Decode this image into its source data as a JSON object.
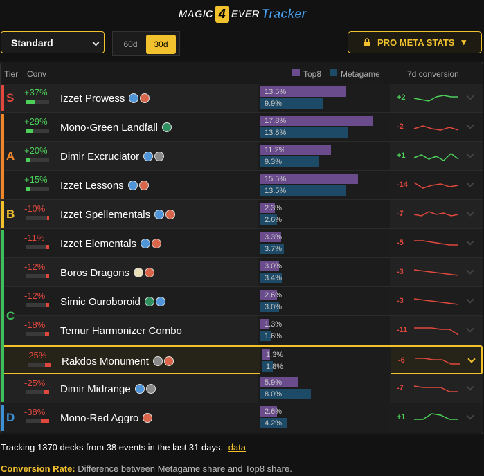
{
  "header": {
    "logo": [
      "MAGIC",
      "4",
      "EVER",
      "Tracker"
    ]
  },
  "controls": {
    "format": "Standard",
    "periods": [
      "60d",
      "30d"
    ],
    "active_period": 1,
    "pro_button": "PRO META STATS",
    "pro_arrow": "▾"
  },
  "table": {
    "columns": {
      "tier": "Tier",
      "conv": "Conv",
      "top8": "Top8",
      "metagame": "Metagame",
      "trend": "7d conversion"
    },
    "selected_row": 9,
    "tiers": [
      {
        "label": "S",
        "from": 0,
        "to": 0,
        "color": "#e0483e"
      },
      {
        "label": "A",
        "from": 1,
        "to": 3,
        "color": "#f0862a"
      },
      {
        "label": "B",
        "from": 4,
        "to": 4,
        "color": "#f2c12e"
      },
      {
        "label": "C",
        "from": 5,
        "to": 10,
        "color": "#3fbf5a"
      },
      {
        "label": "D",
        "from": 11,
        "to": 11,
        "color": "#3d8fd6"
      }
    ],
    "rows": [
      {
        "name": "Izzet Prowess",
        "conv": 37,
        "conv_label": "+37%",
        "top8": 13.5,
        "top8_label": "13.5%",
        "meta": 9.9,
        "meta_label": "9.9%",
        "delta": "+2",
        "trend": [
          5,
          4,
          3,
          6,
          7,
          6,
          6
        ]
      },
      {
        "name": "Mono-Green Landfall",
        "conv": 29,
        "conv_label": "+29%",
        "top8": 17.8,
        "top8_label": "17.8%",
        "meta": 13.8,
        "meta_label": "13.8%",
        "delta": "-2",
        "trend": [
          4,
          6,
          4,
          3,
          5,
          3
        ]
      },
      {
        "name": "Dimir Excruciator",
        "conv": 20,
        "conv_label": "+20%",
        "top8": 11.2,
        "top8_label": "11.2%",
        "meta": 9.3,
        "meta_label": "9.3%",
        "delta": "+1",
        "trend": [
          4,
          6,
          3,
          5,
          2,
          7,
          3
        ]
      },
      {
        "name": "Izzet Lessons",
        "conv": 15,
        "conv_label": "+15%",
        "top8": 15.5,
        "top8_label": "15.5%",
        "meta": 13.5,
        "meta_label": "13.5%",
        "delta": "-14",
        "trend": [
          7,
          3,
          5,
          6,
          4,
          5
        ]
      },
      {
        "name": "Izzet Spellementals",
        "conv": -10,
        "conv_label": "-10%",
        "top8": 2.3,
        "top8_label": "2.3%",
        "meta": 2.6,
        "meta_label": "2.6%",
        "delta": "-7",
        "trend": [
          5,
          4,
          7,
          5,
          6,
          4,
          5
        ]
      },
      {
        "name": "Izzet Elementals",
        "conv": -11,
        "conv_label": "-11%",
        "top8": 3.3,
        "top8_label": "3.3%",
        "meta": 3.7,
        "meta_label": "3.7%",
        "delta": "-5",
        "trend": [
          7,
          7,
          6,
          5,
          4,
          4
        ]
      },
      {
        "name": "Boros Dragons",
        "conv": -12,
        "conv_label": "-12%",
        "top8": 3.0,
        "top8_label": "3.0%",
        "meta": 3.4,
        "meta_label": "3.4%",
        "delta": "-3",
        "trend": [
          7,
          6,
          5,
          4,
          3
        ]
      },
      {
        "name": "Simic Ouroboroid",
        "conv": -12,
        "conv_label": "-12%",
        "top8": 2.6,
        "top8_label": "2.6%",
        "meta": 3.0,
        "meta_label": "3.0%",
        "delta": "-3",
        "trend": [
          7,
          6,
          5,
          4,
          3
        ]
      },
      {
        "name": "Temur Harmonizer Combo",
        "conv": -18,
        "conv_label": "-18%",
        "top8": 1.3,
        "top8_label": "1.3%",
        "meta": 1.6,
        "meta_label": "1.6%",
        "delta": "-11",
        "trend": [
          7,
          7,
          7,
          6,
          6,
          2
        ]
      },
      {
        "name": "Rakdos Monument",
        "conv": -25,
        "conv_label": "-25%",
        "top8": 1.3,
        "top8_label": "1.3%",
        "meta": 1.8,
        "meta_label": "1.8%",
        "delta": "-6",
        "trend": [
          7,
          7,
          6,
          6,
          3,
          3
        ]
      },
      {
        "name": "Dimir Midrange",
        "conv": -25,
        "conv_label": "-25%",
        "top8": 5.9,
        "top8_label": "5.9%",
        "meta": 8.0,
        "meta_label": "8.0%",
        "delta": "-7",
        "trend": [
          7,
          6,
          6,
          6,
          3,
          3
        ]
      },
      {
        "name": "Mono-Red Aggro",
        "conv": -38,
        "conv_label": "-38%",
        "top8": 2.6,
        "top8_label": "2.6%",
        "meta": 4.2,
        "meta_label": "4.2%",
        "delta": "+1",
        "trend": [
          4,
          4,
          8,
          7,
          4,
          4
        ]
      }
    ]
  },
  "footer": {
    "tracking": "Tracking 1370 decks from 38 events in the last 31 days.",
    "link": "data",
    "rate_label": "Conversion Rate:",
    "rate_text": "Difference between Metagame share and Top8 share."
  }
}
